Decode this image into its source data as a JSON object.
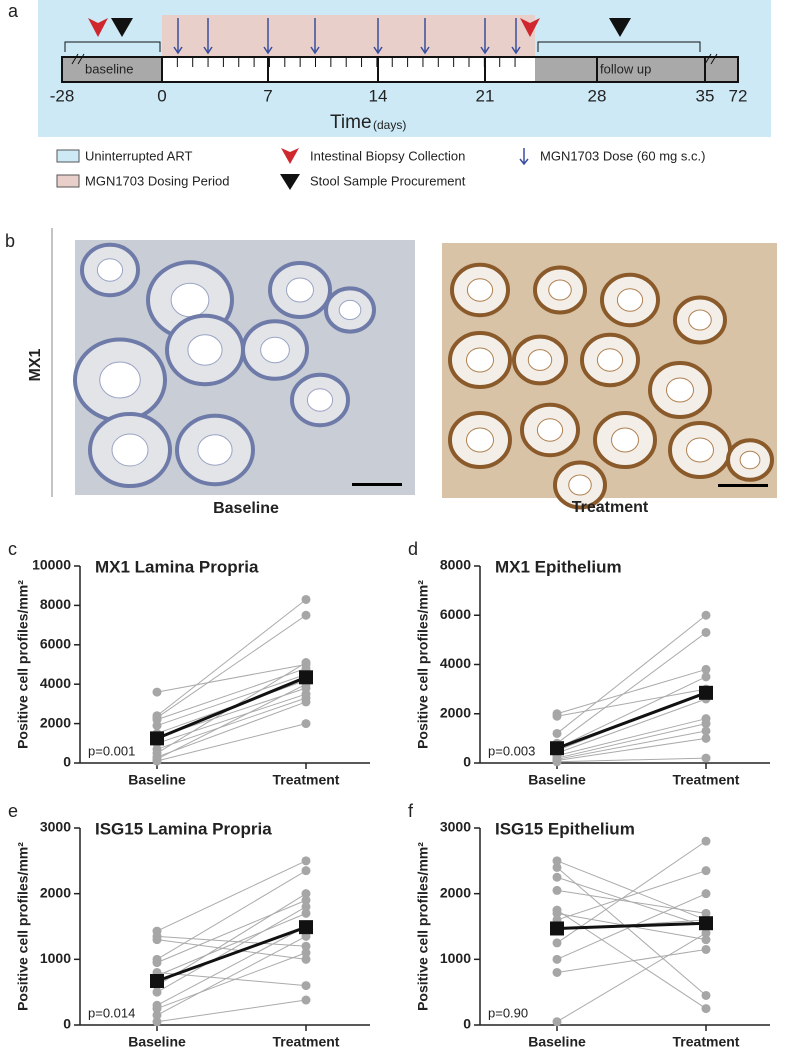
{
  "timeline": {
    "label": "a",
    "ticks": [
      "-28",
      "0",
      "7",
      "14",
      "21",
      "28",
      "35",
      "72"
    ],
    "regions": [
      "baseline",
      "follow up"
    ],
    "axis_title": "Time",
    "axis_unit": "(days)",
    "legend": [
      "Uninterrupted ART",
      "MGN1703 Dosing Period",
      "Intestinal Biopsy Collection",
      "Stool Sample Procurement",
      "MGN1703 Dose (60 mg s.c.)"
    ]
  },
  "histology": {
    "label": "b",
    "stain": "MX1",
    "images": [
      "Baseline",
      "Treatment"
    ]
  },
  "chart_data": [
    {
      "type": "paired",
      "panel": "c",
      "title": "MX1 Lamina Propria",
      "ylabel": "Positive cell profiles/mm²",
      "categories": [
        "Baseline",
        "Treatment"
      ],
      "ylim": [
        0,
        10000
      ],
      "yticks": [
        0,
        2000,
        4000,
        6000,
        8000,
        10000
      ],
      "pairs": [
        [
          3600,
          5000
        ],
        [
          2400,
          8300
        ],
        [
          2300,
          7500
        ],
        [
          2200,
          4800
        ],
        [
          1900,
          4500
        ],
        [
          1500,
          4200
        ],
        [
          1300,
          3800
        ],
        [
          1000,
          3500
        ],
        [
          700,
          3300
        ],
        [
          500,
          5100
        ],
        [
          300,
          3100
        ],
        [
          100,
          2000
        ],
        [
          200,
          4000
        ]
      ],
      "means": [
        1250,
        4350
      ],
      "p_value": "p=0.001"
    },
    {
      "type": "paired",
      "panel": "d",
      "title": "MX1 Epithelium",
      "ylabel": "Positive cell profiles/mm²",
      "categories": [
        "Baseline",
        "Treatment"
      ],
      "ylim": [
        0,
        8000
      ],
      "yticks": [
        0,
        2000,
        4000,
        6000,
        8000
      ],
      "pairs": [
        [
          2000,
          3800
        ],
        [
          1900,
          3000
        ],
        [
          1200,
          6000
        ],
        [
          800,
          5300
        ],
        [
          600,
          3500
        ],
        [
          400,
          2600
        ],
        [
          300,
          1800
        ],
        [
          200,
          1600
        ],
        [
          150,
          1300
        ],
        [
          100,
          1000
        ],
        [
          50,
          200
        ],
        [
          500,
          2900
        ]
      ],
      "means": [
        600,
        2850
      ],
      "p_value": "p=0.003"
    },
    {
      "type": "paired",
      "panel": "e",
      "title": "ISG15 Lamina Propria",
      "ylabel": "Positive cell profiles/mm²",
      "categories": [
        "Baseline",
        "Treatment"
      ],
      "ylim": [
        0,
        3000
      ],
      "yticks": [
        0,
        1000,
        2000,
        3000
      ],
      "pairs": [
        [
          1430,
          2500
        ],
        [
          1350,
          1200
        ],
        [
          1000,
          2350
        ],
        [
          950,
          1900
        ],
        [
          800,
          600
        ],
        [
          750,
          1700
        ],
        [
          600,
          2000
        ],
        [
          300,
          1500
        ],
        [
          250,
          1100
        ],
        [
          150,
          1350
        ],
        [
          50,
          380
        ],
        [
          500,
          1800
        ],
        [
          1300,
          1000
        ]
      ],
      "means": [
        670,
        1490
      ],
      "p_value": "p=0.014"
    },
    {
      "type": "paired",
      "panel": "f",
      "title": "ISG15 Epithelium",
      "ylabel": "Positive cell profiles/mm²",
      "categories": [
        "Baseline",
        "Treatment"
      ],
      "ylim": [
        0,
        3000
      ],
      "yticks": [
        0,
        1000,
        2000,
        3000
      ],
      "pairs": [
        [
          2500,
          1600
        ],
        [
          2400,
          450
        ],
        [
          2250,
          1500
        ],
        [
          2050,
          1700
        ],
        [
          1750,
          250
        ],
        [
          1700,
          1300
        ],
        [
          1600,
          2350
        ],
        [
          1450,
          1600
        ],
        [
          1250,
          2800
        ],
        [
          1000,
          2000
        ],
        [
          800,
          1150
        ],
        [
          50,
          1400
        ]
      ],
      "means": [
        1470,
        1550
      ],
      "p_value": "p=0.90"
    }
  ]
}
